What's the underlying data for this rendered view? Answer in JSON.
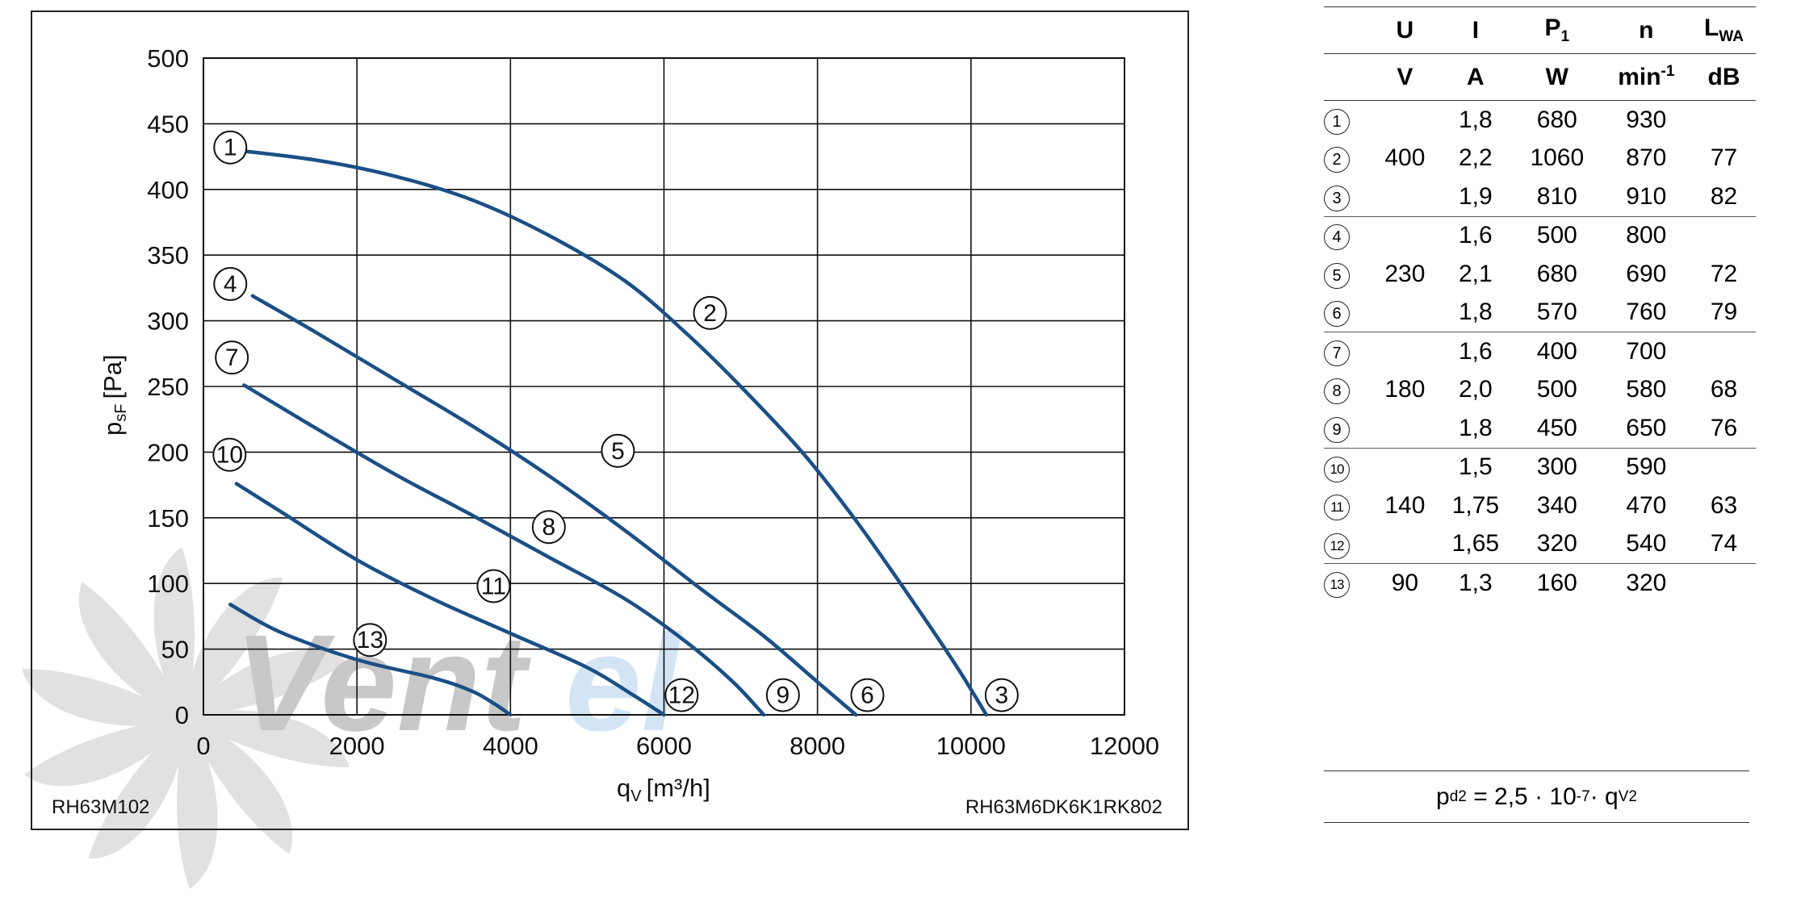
{
  "chart_data": {
    "type": "line",
    "title": "",
    "xlabel": "q",
    "xlabel_sub": "V",
    "xlabel_unit": "[m³/h]",
    "ylabel": "p",
    "ylabel_sub": "sF",
    "ylabel_unit": "[Pa]",
    "xlim": [
      0,
      12000
    ],
    "ylim": [
      0,
      500
    ],
    "x_ticks": [
      0,
      2000,
      4000,
      6000,
      8000,
      10000,
      12000
    ],
    "y_ticks": [
      0,
      50,
      100,
      150,
      200,
      250,
      300,
      350,
      400,
      450,
      500
    ],
    "grid": true,
    "line_color": "#1b4f86",
    "series": [
      {
        "name": "1-2-3 (400 V)",
        "x": [
          400,
          1500,
          2500,
          3500,
          4500,
          5500,
          6300,
          7000,
          7800,
          8500,
          9200,
          9800,
          10200
        ],
        "y": [
          430,
          422,
          410,
          392,
          365,
          330,
          290,
          250,
          200,
          148,
          90,
          38,
          0
        ]
      },
      {
        "name": "4-5-6 (230 V)",
        "x": [
          640,
          1500,
          2500,
          3500,
          4500,
          5500,
          6500,
          7300,
          8000,
          8500
        ],
        "y": [
          319,
          290,
          255,
          220,
          182,
          140,
          95,
          60,
          25,
          0
        ]
      },
      {
        "name": "7-8-9 (180 V)",
        "x": [
          530,
          1500,
          2500,
          3500,
          4500,
          5500,
          6300,
          6900,
          7300
        ],
        "y": [
          251,
          217,
          183,
          152,
          120,
          88,
          55,
          25,
          0
        ]
      },
      {
        "name": "10-11-12 (140 V)",
        "x": [
          430,
          1000,
          2000,
          3000,
          4000,
          5000,
          5600,
          6000
        ],
        "y": [
          176,
          155,
          118,
          88,
          62,
          36,
          15,
          0
        ]
      },
      {
        "name": "13 (90 V)",
        "x": [
          350,
          1000,
          2000,
          3000,
          3500,
          3800,
          4000
        ],
        "y": [
          84,
          63,
          42,
          28,
          18,
          8,
          0
        ]
      }
    ],
    "annotations": [
      {
        "label": "1",
        "x": 350,
        "y": 432
      },
      {
        "label": "2",
        "x": 6600,
        "y": 306
      },
      {
        "label": "3",
        "x": 10400,
        "y": 15
      },
      {
        "label": "4",
        "x": 350,
        "y": 328
      },
      {
        "label": "5",
        "x": 5400,
        "y": 201
      },
      {
        "label": "6",
        "x": 8650,
        "y": 15
      },
      {
        "label": "7",
        "x": 370,
        "y": 272
      },
      {
        "label": "8",
        "x": 4500,
        "y": 143
      },
      {
        "label": "9",
        "x": 7550,
        "y": 15
      },
      {
        "label": "10",
        "x": 340,
        "y": 198
      },
      {
        "label": "11",
        "x": 3780,
        "y": 98
      },
      {
        "label": "12",
        "x": 6230,
        "y": 15
      },
      {
        "label": "13",
        "x": 2170,
        "y": 57
      }
    ],
    "left_label": "RH63M102",
    "right_label": "RH63M6DK6K1RK802"
  },
  "watermark": {
    "text_part1": "Vent",
    "text_part2": "el",
    "color_gray": "#c8c8c8",
    "color_blue": "#cfe2f3"
  },
  "table": {
    "headers": {
      "u": "U",
      "i": "I",
      "p": "P",
      "p_sub": "1",
      "n": "n",
      "l": "L",
      "l_sub": "WA",
      "unit_u": "V",
      "unit_i": "A",
      "unit_p": "W",
      "unit_n": "min",
      "unit_n_sup": "-1",
      "unit_l": "dB"
    },
    "rows": [
      {
        "num": "1",
        "u": "",
        "i": "1,8",
        "p": "680",
        "n": "930",
        "l": ""
      },
      {
        "num": "2",
        "u": "400",
        "i": "2,2",
        "p": "1060",
        "n": "870",
        "l": "77"
      },
      {
        "num": "3",
        "u": "",
        "i": "1,9",
        "p": "810",
        "n": "910",
        "l": "82"
      },
      {
        "num": "4",
        "u": "",
        "i": "1,6",
        "p": "500",
        "n": "800",
        "l": ""
      },
      {
        "num": "5",
        "u": "230",
        "i": "2,1",
        "p": "680",
        "n": "690",
        "l": "72"
      },
      {
        "num": "6",
        "u": "",
        "i": "1,8",
        "p": "570",
        "n": "760",
        "l": "79"
      },
      {
        "num": "7",
        "u": "",
        "i": "1,6",
        "p": "400",
        "n": "700",
        "l": ""
      },
      {
        "num": "8",
        "u": "180",
        "i": "2,0",
        "p": "500",
        "n": "580",
        "l": "68"
      },
      {
        "num": "9",
        "u": "",
        "i": "1,8",
        "p": "450",
        "n": "650",
        "l": "76"
      },
      {
        "num": "10",
        "u": "",
        "i": "1,5",
        "p": "300",
        "n": "590",
        "l": ""
      },
      {
        "num": "11",
        "u": "140",
        "i": "1,75",
        "p": "340",
        "n": "470",
        "l": "63"
      },
      {
        "num": "12",
        "u": "",
        "i": "1,65",
        "p": "320",
        "n": "540",
        "l": "74"
      },
      {
        "num": "13",
        "u": "90",
        "i": "1,3",
        "p": "160",
        "n": "320",
        "l": ""
      }
    ]
  },
  "formula": {
    "p": "p",
    "p_sub": "d2",
    "eq": "= 2,5 · 10",
    "exp": "-7",
    "mid": " · q",
    "q_sub": "V",
    "q_sup": "2"
  }
}
